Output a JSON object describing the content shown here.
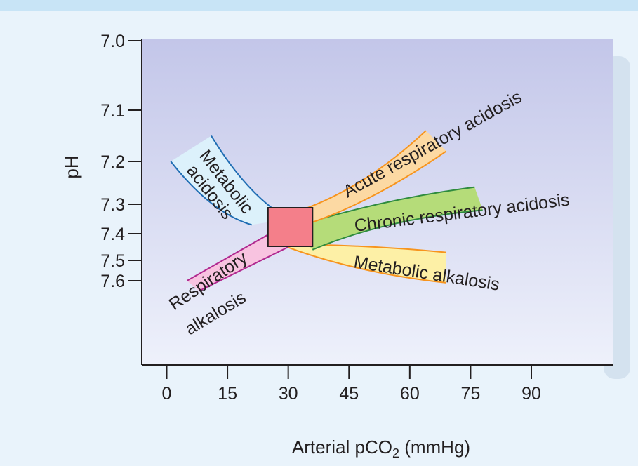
{
  "chart_data": {
    "type": "area",
    "title": "",
    "xlabel": "Arterial pCO",
    "xlabel_subscript": "2",
    "xlabel_suffix": " (mmHg)",
    "ylabel": "pH",
    "x_ticks": [
      0,
      15,
      30,
      45,
      60,
      75,
      90
    ],
    "y_ticks": [
      "7.0",
      "7.1",
      "7.2",
      "7.3",
      "7.4",
      "7.5",
      "7.6"
    ],
    "xlim": [
      -6,
      110
    ],
    "ylim": [
      7.0,
      7.6
    ],
    "grid": false,
    "normal_region": {
      "pco2": [
        25,
        36
      ],
      "ph": [
        7.35,
        7.45
      ],
      "color": "#f47f8a"
    },
    "series": [
      {
        "name": "Acute respiratory acidosis",
        "color": "#fcd9a3",
        "edge": "#f7941d",
        "pco2_range": [
          31,
          69
        ],
        "ph_start": 7.33,
        "ph_end": [
          7.18,
          7.14
        ]
      },
      {
        "name": "Chronic respiratory acidosis",
        "color": "#b5dc79",
        "edge": "#2e8b3e",
        "pco2_range": [
          31,
          78
        ],
        "ph_start": 7.38,
        "ph_end": [
          7.26,
          7.32
        ]
      },
      {
        "name": "Metabolic alkalosis",
        "color": "#fdf0a6",
        "edge": "#f7941d",
        "pco2_range": [
          28,
          69
        ],
        "ph_start": 7.44,
        "ph_end": [
          7.47,
          7.61
        ]
      },
      {
        "name": "Metabolic acidosis",
        "color": "#dcf1fb",
        "edge": "#1f6db3",
        "pco2_range": [
          1,
          30
        ],
        "ph_start": [
          7.15,
          7.2
        ],
        "ph_end": 7.37
      },
      {
        "name": "Respiratory alkalosis",
        "color": "#f8c3e0",
        "edge": "#b0288f",
        "pco2_range": [
          5,
          30
        ],
        "ph_start": [
          7.6,
          7.65
        ],
        "ph_end": 7.43
      }
    ],
    "labels": {
      "acute": "Acute respiratory acidosis",
      "chronic": "Chronic respiratory acidosis",
      "met_alk": "Metabolic alkalosis",
      "met_acid_1": "Metabolic",
      "met_acid_2": "acidosis",
      "resp_alk_1": "Respiratory",
      "resp_alk_2": "alkalosis"
    },
    "colors": {
      "plot_top": "#c3c6e9",
      "plot_bottom": "#eef1fb",
      "axis": "#231f20",
      "page_bg": "#e9f3fb",
      "top_strip": "#c8e4f6"
    }
  }
}
